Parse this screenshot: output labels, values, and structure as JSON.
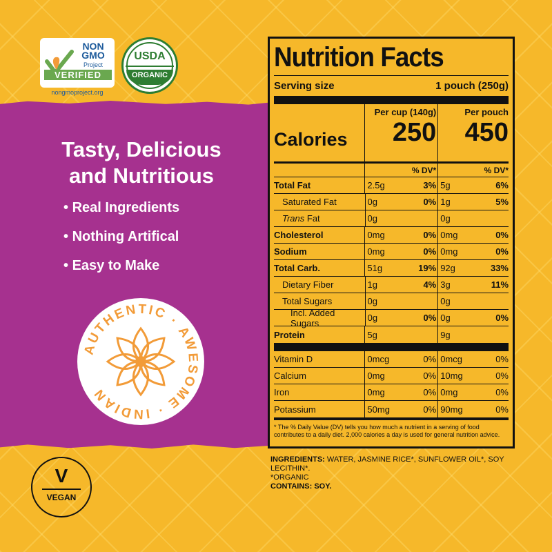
{
  "badges": {
    "nongmo": {
      "line1": "NON",
      "line2": "GMO",
      "line3": "Project",
      "verified": "VERIFIED",
      "site": "nongmoproject.org"
    },
    "usda": {
      "top": "USDA",
      "bottom": "ORGANIC"
    },
    "authentic": {
      "ring": "AUTHENTIC · AWESOME · INDIAN"
    },
    "vegan": {
      "letter": "V",
      "label": "VEGAN"
    }
  },
  "left": {
    "headline_1": "Tasty, Delicious",
    "headline_2": "and Nutritious",
    "bullets": [
      "Real Ingredients",
      "Nothing Artifical",
      "Easy to Make"
    ]
  },
  "nutrition": {
    "title": "Nutrition Facts",
    "serving_label": "Serving size",
    "serving_value": "1 pouch (250g)",
    "calories_label": "Calories",
    "col1_header": "Per cup (140g)",
    "col1_calories": "250",
    "col2_header": "Per pouch",
    "col2_calories": "450",
    "dv_label": "% DV*",
    "rows": [
      {
        "label": "Total Fat",
        "a": "2.5g",
        "b": "3%",
        "c": "5g",
        "d": "6%"
      },
      {
        "label": "Saturated Fat",
        "a": "0g",
        "b": "0%",
        "c": "1g",
        "d": "5%"
      },
      {
        "label_italic": "Trans",
        "label_rest": " Fat",
        "a": "0g",
        "b": "",
        "c": "0g",
        "d": ""
      },
      {
        "label": "Cholesterol",
        "a": "0mg",
        "b": "0%",
        "c": "0mg",
        "d": "0%"
      },
      {
        "label": "Sodium",
        "a": "0mg",
        "b": "0%",
        "c": "0mg",
        "d": "0%"
      },
      {
        "label": "Total Carb.",
        "a": "51g",
        "b": "19%",
        "c": "92g",
        "d": "33%"
      },
      {
        "label": "Dietary Fiber",
        "a": "1g",
        "b": "4%",
        "c": "3g",
        "d": "11%"
      },
      {
        "label": "Total Sugars",
        "a": "0g",
        "b": "",
        "c": "0g",
        "d": ""
      },
      {
        "label": "Incl. Added Sugars",
        "a": "0g",
        "b": "0%",
        "c": "0g",
        "d": "0%"
      },
      {
        "label": "Protein",
        "a": "5g",
        "b": "",
        "c": "9g",
        "d": ""
      }
    ],
    "vitamins": [
      {
        "label": "Vitamin D",
        "a": "0mcg",
        "b": "0%",
        "c": "0mcg",
        "d": "0%"
      },
      {
        "label": "Calcium",
        "a": "0mg",
        "b": "0%",
        "c": "10mg",
        "d": "0%"
      },
      {
        "label": "Iron",
        "a": "0mg",
        "b": "0%",
        "c": "0mg",
        "d": "0%"
      },
      {
        "label": "Potassium",
        "a": "50mg",
        "b": "0%",
        "c": "90mg",
        "d": "0%"
      }
    ],
    "footnote": "* The % Daily Value (DV) tells you how much a nutrient in a serving of food contributes to a daily diet. 2,000 calories a day is used for general nutrition advice."
  },
  "ingredients": {
    "label": "INGREDIENTS:",
    "text": " WATER, JASMINE RICE*, SUNFLOWER OIL*, SOY LECITHIN*.",
    "organic": "*ORGANIC",
    "contains": "CONTAINS: SOY."
  },
  "colors": {
    "purple": "#a6318f",
    "yellow": "#f6b82a",
    "orange": "#f29b38"
  }
}
